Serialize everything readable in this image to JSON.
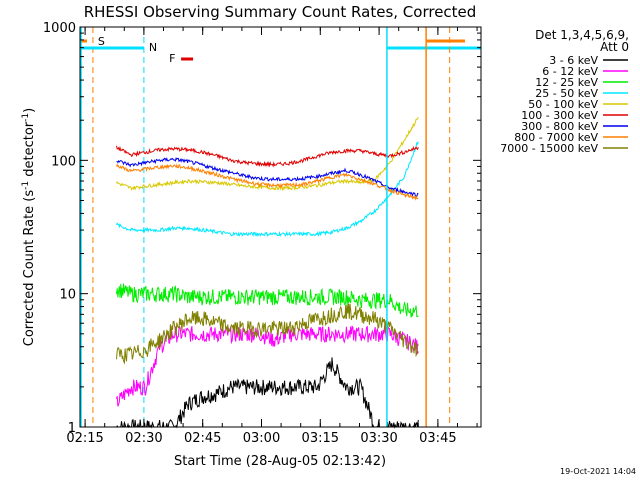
{
  "chart_data": {
    "type": "line",
    "title": "RHESSI Observing Summary Count Rates, Corrected",
    "xlabel": "Start Time (28-Aug-05 02:13:42)",
    "ylabel_main": "Corrected Count Rate (s",
    "ylabel_sup1": "-1",
    "ylabel_mid": " detector",
    "ylabel_sup2": "-1",
    "ylabel_end": ")",
    "y_scale": "log",
    "ylim": [
      1,
      1000
    ],
    "xlim": [
      "02:13:42",
      "03:56:00"
    ],
    "x_ticks": [
      "02:15",
      "02:30",
      "02:45",
      "03:00",
      "03:15",
      "03:30",
      "03:45"
    ],
    "y_ticks": [
      "1",
      "10",
      "100",
      "1000"
    ],
    "legend_header": "Det 1,3,4,5,6,9,",
    "legend_att": "Att 0",
    "legend_placement": "right",
    "timestamp": "19-Oct-2021 14:04",
    "markers": [
      {
        "label": "S",
        "color": "#ff8000",
        "time": "02:17"
      },
      {
        "label": "N",
        "color": "#00e0ff",
        "time": "02:30"
      },
      {
        "label": "F",
        "color": "#e00000",
        "time": "02:40"
      }
    ],
    "series": [
      {
        "name": "3 - 6 keV",
        "color": "#000000",
        "start": "02:23",
        "end": "03:40",
        "values": [
          1,
          1,
          1,
          1,
          1,
          1.5,
          1.7,
          1.8,
          2,
          2,
          2,
          2,
          2,
          2,
          2,
          3,
          2,
          2,
          1,
          1,
          1,
          1
        ]
      },
      {
        "name": "6 - 12 keV",
        "color": "#ff00ff",
        "start": "02:23",
        "end": "03:40",
        "values": [
          1.5,
          2,
          2,
          4,
          5,
          5,
          5,
          5,
          5,
          5,
          5,
          4.5,
          5,
          5,
          5,
          5,
          5,
          5,
          5,
          5,
          4.5,
          4
        ]
      },
      {
        "name": "12 - 25 keV",
        "color": "#00ee00",
        "start": "02:23",
        "end": "03:40",
        "values": [
          11,
          10,
          10,
          10,
          10,
          9.5,
          9.5,
          9.5,
          9.5,
          9.5,
          9.5,
          9.5,
          9.5,
          9.5,
          9.5,
          9.5,
          9.5,
          9,
          9,
          9,
          7.5,
          7.5
        ]
      },
      {
        "name": "25 - 50 keV",
        "color": "#00e8ff",
        "start": "02:23",
        "end": "03:40",
        "values": [
          33,
          30,
          30,
          30,
          31,
          31,
          30,
          29,
          28,
          28,
          28,
          28,
          28,
          28,
          28,
          29,
          31,
          35,
          42,
          55,
          75,
          140
        ]
      },
      {
        "name": "50 - 100 keV",
        "color": "#d8c800",
        "start": "02:23",
        "end": "03:40",
        "values": [
          68,
          62,
          64,
          66,
          68,
          70,
          69,
          68,
          66,
          64,
          63,
          62,
          62,
          63,
          65,
          68,
          70,
          68,
          72,
          95,
          140,
          210
        ]
      },
      {
        "name": "100 - 300 keV",
        "color": "#e00000",
        "start": "02:23",
        "end": "03:40",
        "values": [
          125,
          110,
          115,
          120,
          122,
          120,
          115,
          108,
          100,
          96,
          94,
          93,
          95,
          100,
          108,
          115,
          118,
          118,
          112,
          108,
          115,
          125
        ]
      },
      {
        "name": "300 - 800 keV",
        "color": "#0000ee",
        "start": "02:23",
        "end": "03:40",
        "values": [
          100,
          92,
          96,
          100,
          102,
          98,
          92,
          86,
          81,
          76,
          73,
          72,
          72,
          73,
          76,
          80,
          84,
          78,
          70,
          62,
          58,
          55
        ]
      },
      {
        "name": "800 - 7000 keV",
        "color": "#ff8000",
        "start": "02:23",
        "end": "03:40",
        "values": [
          92,
          83,
          86,
          89,
          91,
          88,
          83,
          78,
          73,
          69,
          66,
          65,
          65,
          66,
          70,
          75,
          78,
          72,
          66,
          60,
          55,
          52
        ]
      },
      {
        "name": "7000 - 15000 keV",
        "color": "#808000",
        "start": "02:23",
        "end": "03:40",
        "values": [
          3.5,
          3.5,
          3.8,
          4.5,
          5.5,
          6.5,
          6.5,
          6,
          5.5,
          5.5,
          5.5,
          5.5,
          5.5,
          6,
          6.5,
          7,
          7.5,
          7,
          6.5,
          5.5,
          4.5,
          3.8
        ]
      }
    ]
  }
}
